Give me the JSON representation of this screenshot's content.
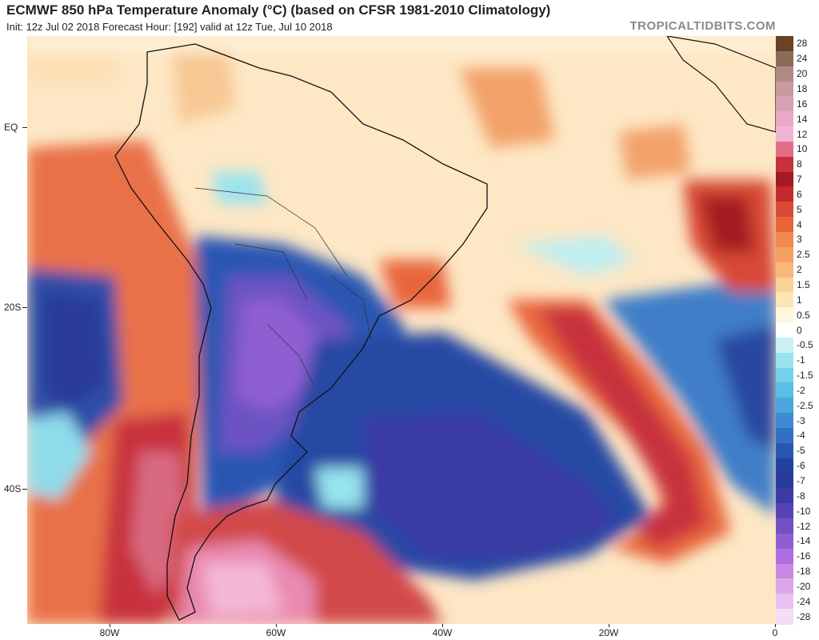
{
  "header": {
    "title": "ECMWF 850 hPa Temperature Anomaly (°C) (based on CFSR 1981-2010 Climatology)",
    "subtitle": "Init: 12z Jul 02 2018   Forecast Hour: [192]   valid at 12z Tue, Jul 10 2018",
    "credit": "TROPICALTIDBITS.COM"
  },
  "axes": {
    "lat_labels": [
      "EQ",
      "20S",
      "40S"
    ],
    "lon_labels": [
      "80W",
      "60W",
      "40W",
      "20W",
      "0"
    ]
  },
  "colorbar": {
    "labels": [
      "28",
      "24",
      "20",
      "18",
      "16",
      "14",
      "12",
      "10",
      "8",
      "7",
      "6",
      "5",
      "4",
      "3",
      "2.5",
      "2",
      "1.5",
      "1",
      "0.5",
      "0",
      "-0.5",
      "-1",
      "-1.5",
      "-2",
      "-2.5",
      "-3",
      "-4",
      "-5",
      "-6",
      "-7",
      "-8",
      "-10",
      "-12",
      "-14",
      "-16",
      "-18",
      "-20",
      "-24",
      "-28"
    ],
    "colors": [
      "#6b4226",
      "#8b6a5a",
      "#b18a86",
      "#c99a9e",
      "#d8a0b4",
      "#e9a8c8",
      "#f3b3d5",
      "#e06f86",
      "#c8323c",
      "#a31a22",
      "#c42a2a",
      "#d94a34",
      "#e8663c",
      "#f08850",
      "#f5a060",
      "#f8b878",
      "#fbd294",
      "#fde6b4",
      "#fff6dc",
      "#ffffff",
      "#c8f1f4",
      "#98e4ee",
      "#74d3ea",
      "#5abfe4",
      "#4aa6dc",
      "#3f8ad0",
      "#3370c4",
      "#2957b2",
      "#23429e",
      "#2a3a98",
      "#3d3aa6",
      "#5744b4",
      "#7350c4",
      "#8f5ed2",
      "#b06ee0",
      "#cc88e6",
      "#dca6ec",
      "#e8c2f0",
      "#f3def6"
    ]
  }
}
